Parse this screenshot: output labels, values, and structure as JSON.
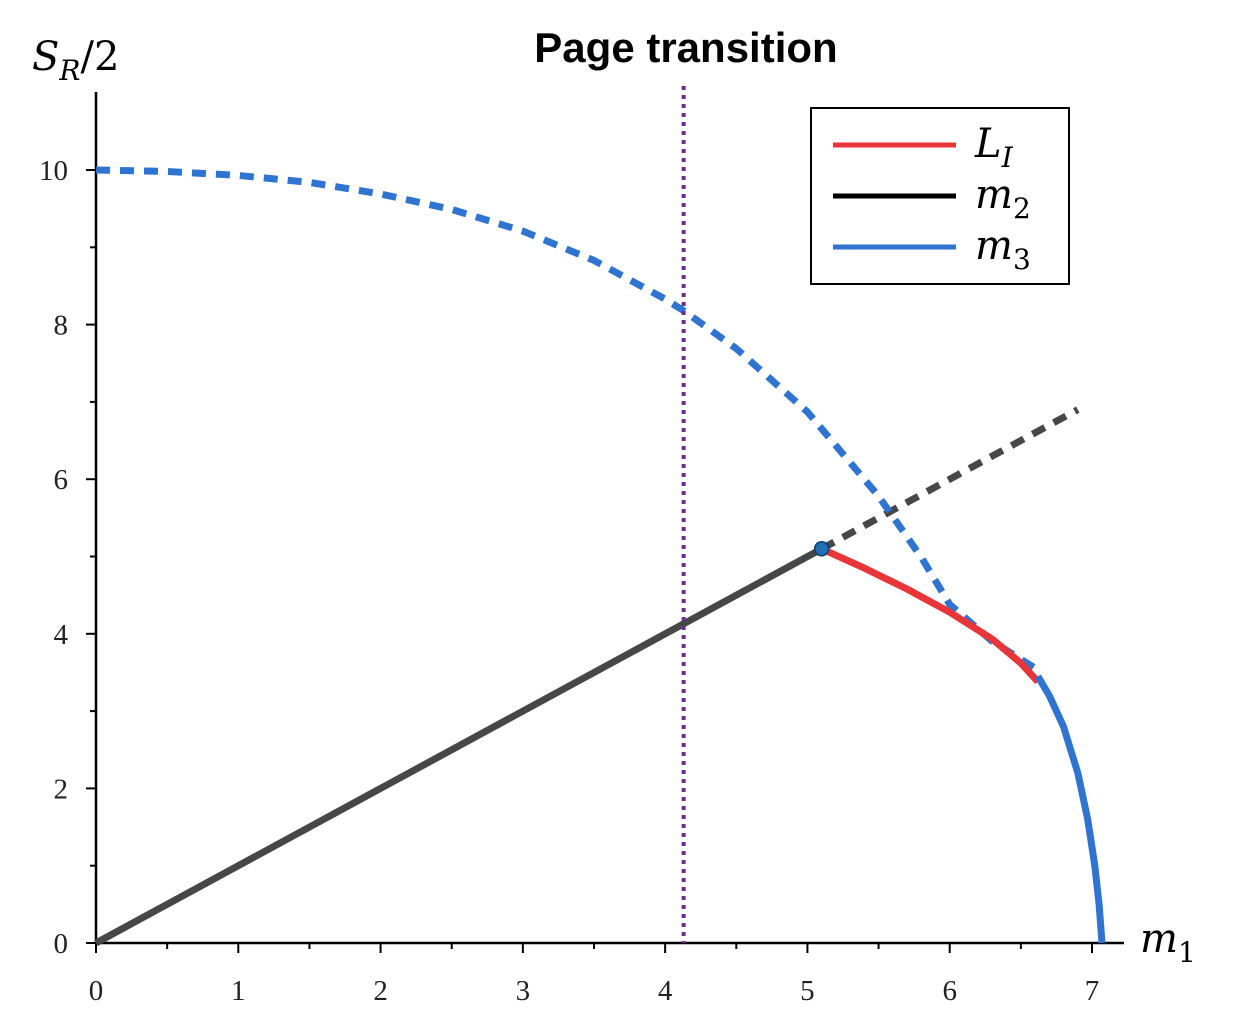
{
  "chart_data": {
    "type": "line",
    "title": "Page transition",
    "xlabel": {
      "base": "m",
      "sub": "1"
    },
    "ylabel": {
      "base": "S",
      "sub": "R",
      "suffix": "/2"
    },
    "xlim": [
      0,
      7.2
    ],
    "ylim": [
      0,
      11
    ],
    "x_ticks": [
      0,
      1,
      2,
      3,
      4,
      5,
      6,
      7
    ],
    "y_ticks": [
      0,
      2,
      4,
      6,
      8,
      10
    ],
    "legend": {
      "position": "top-right",
      "entries": [
        {
          "base": "L",
          "sub": "I",
          "color": "#e8353a"
        },
        {
          "base": "m",
          "sub": "2",
          "color": "#000000"
        },
        {
          "base": "m",
          "sub": "3",
          "color": "#2f74d0"
        }
      ]
    },
    "series": [
      {
        "name": "m2",
        "style": "solid",
        "color": "#474747",
        "points": [
          [
            0,
            0
          ],
          [
            5.1,
            5.1
          ]
        ]
      },
      {
        "name": "m2",
        "style": "dashed",
        "color": "#474747",
        "points": [
          [
            5.1,
            5.1
          ],
          [
            6.9,
            6.9
          ]
        ]
      },
      {
        "name": "m3",
        "style": "dashed",
        "color": "#2f74d0",
        "points": [
          [
            0,
            10
          ],
          [
            0.5,
            9.98
          ],
          [
            1,
            9.93
          ],
          [
            1.5,
            9.84
          ],
          [
            2,
            9.69
          ],
          [
            2.5,
            9.49
          ],
          [
            3,
            9.21
          ],
          [
            3.5,
            8.83
          ],
          [
            4,
            8.33
          ],
          [
            4.13,
            8.18
          ],
          [
            4.5,
            7.69
          ],
          [
            5,
            6.87
          ],
          [
            5.5,
            5.78
          ],
          [
            5.8,
            4.99
          ],
          [
            6,
            4.38
          ],
          [
            6.3,
            3.9
          ],
          [
            6.5,
            3.67
          ],
          [
            6.65,
            3.5
          ]
        ]
      },
      {
        "name": "LI",
        "style": "solid",
        "color": "#e8353a",
        "points": [
          [
            5.1,
            5.1
          ],
          [
            5.4,
            4.85
          ],
          [
            5.7,
            4.58
          ],
          [
            6.0,
            4.28
          ],
          [
            6.3,
            3.93
          ],
          [
            6.5,
            3.62
          ],
          [
            6.62,
            3.38
          ]
        ]
      },
      {
        "name": "m3",
        "style": "solid",
        "color": "#2f74d0",
        "points": [
          [
            6.62,
            3.45
          ],
          [
            6.7,
            3.2
          ],
          [
            6.8,
            2.8
          ],
          [
            6.9,
            2.2
          ],
          [
            6.97,
            1.6
          ],
          [
            7.02,
            1.0
          ],
          [
            7.05,
            0.5
          ],
          [
            7.07,
            0
          ]
        ]
      }
    ],
    "marker": {
      "x": 5.1,
      "y": 5.1,
      "color": "#1f6fb2"
    },
    "vline": {
      "x": 4.13,
      "style": "dotted",
      "color": "#6b2d8f"
    }
  }
}
